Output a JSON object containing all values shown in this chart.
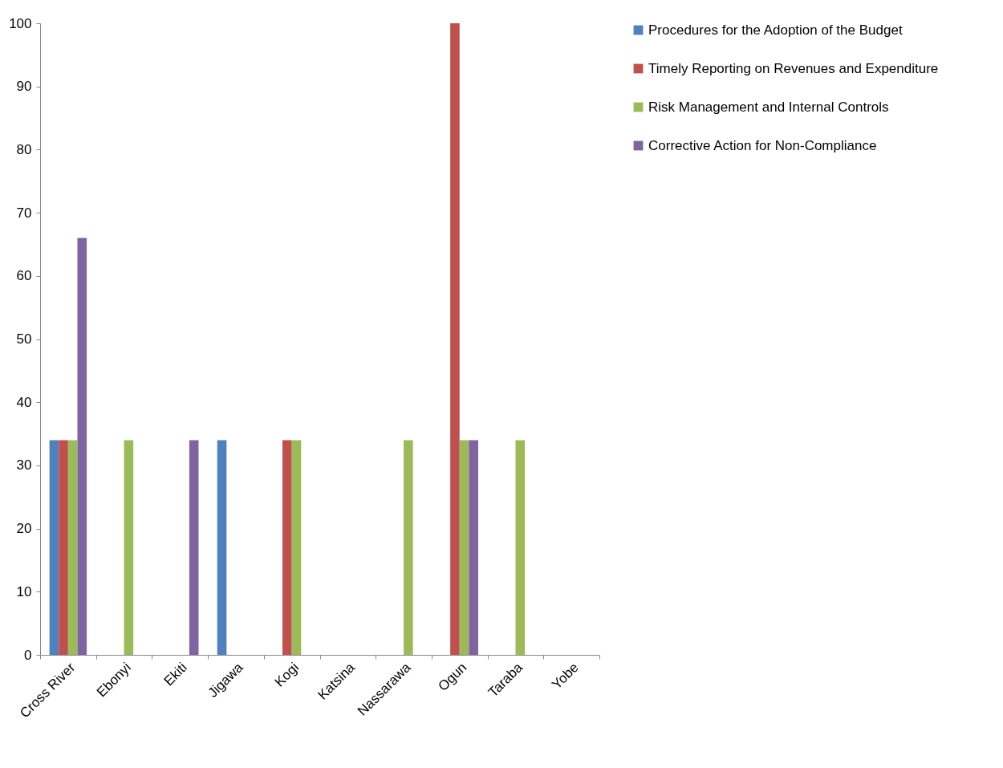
{
  "chart_data": {
    "type": "bar",
    "categories": [
      "Cross River",
      "Ebonyi",
      "Ekiti",
      "Jigawa",
      "Kogi",
      "Katsina",
      "Nassarawa",
      "Ogun",
      "Taraba",
      "Yobe"
    ],
    "series": [
      {
        "name": "Procedures for the Adoption of the Budget",
        "color": "#4f81bd",
        "values": [
          34,
          0,
          0,
          34,
          0,
          0,
          0,
          0,
          0,
          0
        ]
      },
      {
        "name": "Timely Reporting on Revenues and Expenditure",
        "color": "#c0504d",
        "values": [
          34,
          0,
          0,
          0,
          34,
          0,
          0,
          100,
          0,
          0
        ]
      },
      {
        "name": "Risk Management and Internal Controls",
        "color": "#9bbb59",
        "values": [
          34,
          34,
          0,
          0,
          34,
          0,
          34,
          34,
          34,
          0
        ]
      },
      {
        "name": "Corrective Action for Non-Compliance",
        "color": "#8064a2",
        "values": [
          66,
          0,
          34,
          0,
          0,
          0,
          0,
          34,
          0,
          0
        ]
      }
    ],
    "ylim": [
      0,
      100
    ],
    "yticks": [
      0,
      10,
      20,
      30,
      40,
      50,
      60,
      70,
      80,
      90,
      100
    ],
    "grid": false,
    "legend": "right"
  }
}
